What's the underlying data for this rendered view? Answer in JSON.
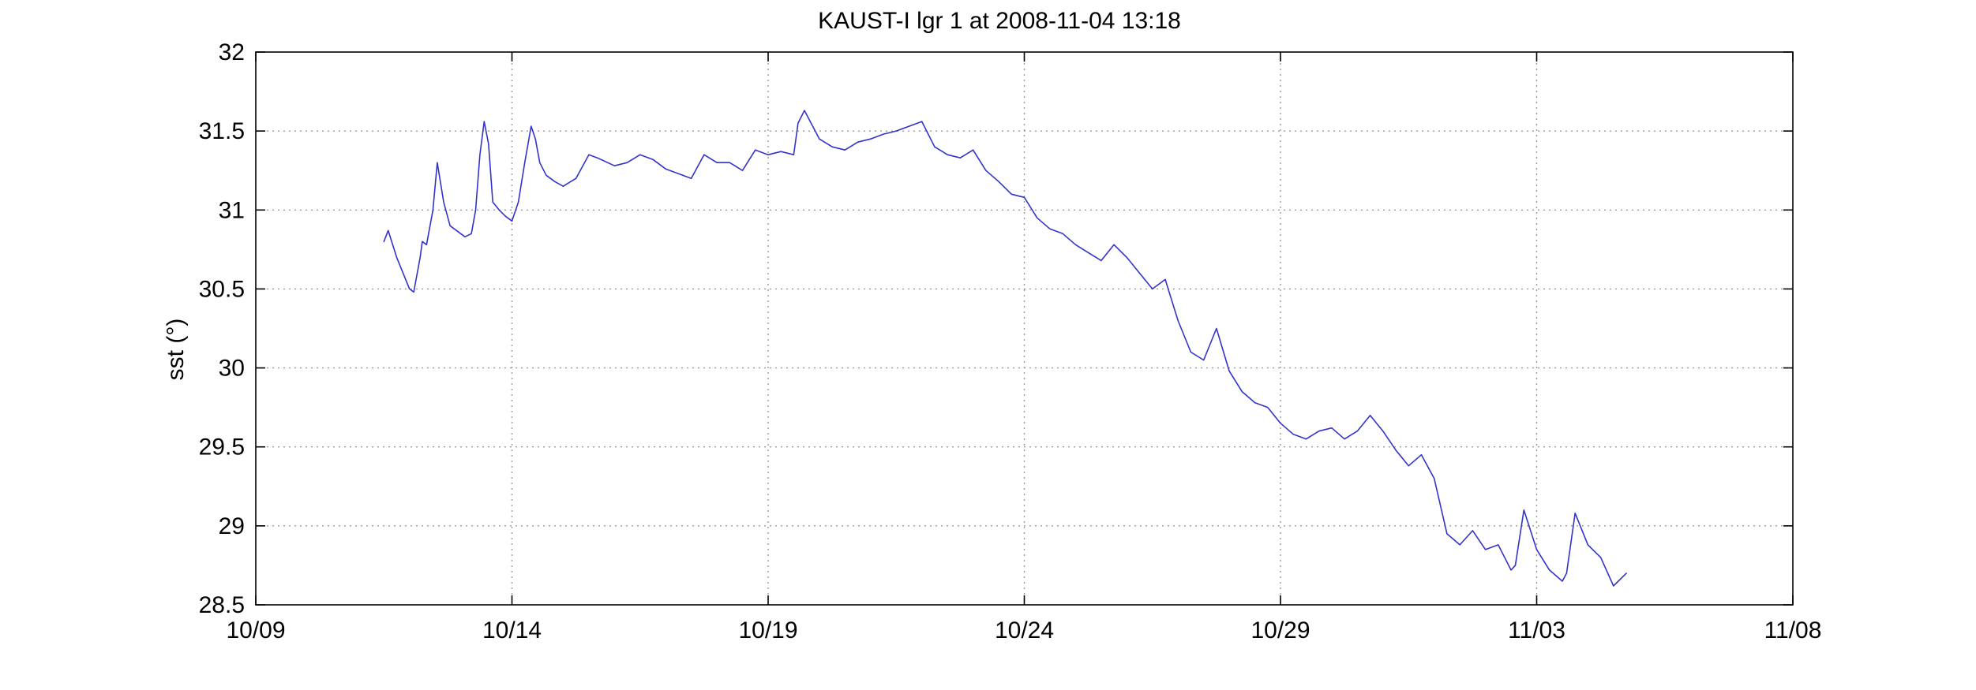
{
  "chart_data": {
    "type": "line",
    "title": "KAUST-I lgr 1 at 2008-11-04 13:18",
    "xlabel": "",
    "ylabel": "sst (°)",
    "xlim": [
      "2008-10-09",
      "2008-11-08"
    ],
    "ylim": [
      28.5,
      32
    ],
    "x_ticks": [
      "10/09",
      "10/14",
      "10/19",
      "10/24",
      "10/29",
      "11/03",
      "11/08"
    ],
    "y_ticks": [
      "28.5",
      "29",
      "29.5",
      "30",
      "30.5",
      "31",
      "31.5",
      "32"
    ],
    "grid": true,
    "series": [
      {
        "color": "#3333cc",
        "x": [
          "2008-10-11 12:00",
          "2008-10-11 14:00",
          "2008-10-11 18:00",
          "2008-10-12 00:00",
          "2008-10-12 02:00",
          "2008-10-12 05:00",
          "2008-10-12 06:00",
          "2008-10-12 08:00",
          "2008-10-12 11:00",
          "2008-10-12 13:00",
          "2008-10-12 16:00",
          "2008-10-12 19:00",
          "2008-10-12 21:00",
          "2008-10-13 00:00",
          "2008-10-13 02:00",
          "2008-10-13 05:00",
          "2008-10-13 07:00",
          "2008-10-13 09:00",
          "2008-10-13 11:00",
          "2008-10-13 13:00",
          "2008-10-13 15:00",
          "2008-10-13 18:00",
          "2008-10-13 21:00",
          "2008-10-14 00:00",
          "2008-10-14 03:00",
          "2008-10-14 06:00",
          "2008-10-14 09:00",
          "2008-10-14 11:00",
          "2008-10-14 13:00",
          "2008-10-14 16:00",
          "2008-10-14 20:00",
          "2008-10-15 00:00",
          "2008-10-15 06:00",
          "2008-10-15 12:00",
          "2008-10-15 16:00",
          "2008-10-16 00:00",
          "2008-10-16 06:00",
          "2008-10-16 12:00",
          "2008-10-16 18:00",
          "2008-10-17 00:00",
          "2008-10-17 06:00",
          "2008-10-17 12:00",
          "2008-10-17 18:00",
          "2008-10-18 00:00",
          "2008-10-18 06:00",
          "2008-10-18 12:00",
          "2008-10-18 18:00",
          "2008-10-19 00:00",
          "2008-10-19 06:00",
          "2008-10-19 12:00",
          "2008-10-19 14:00",
          "2008-10-19 17:00",
          "2008-10-20 00:00",
          "2008-10-20 06:00",
          "2008-10-20 12:00",
          "2008-10-20 18:00",
          "2008-10-21 00:00",
          "2008-10-21 06:00",
          "2008-10-21 12:00",
          "2008-10-21 18:00",
          "2008-10-22 00:00",
          "2008-10-22 06:00",
          "2008-10-22 12:00",
          "2008-10-22 18:00",
          "2008-10-23 00:00",
          "2008-10-23 06:00",
          "2008-10-23 12:00",
          "2008-10-23 18:00",
          "2008-10-24 00:00",
          "2008-10-24 06:00",
          "2008-10-24 12:00",
          "2008-10-24 18:00",
          "2008-10-25 00:00",
          "2008-10-25 06:00",
          "2008-10-25 12:00",
          "2008-10-25 18:00",
          "2008-10-26 00:00",
          "2008-10-26 06:00",
          "2008-10-26 12:00",
          "2008-10-26 18:00",
          "2008-10-27 00:00",
          "2008-10-27 06:00",
          "2008-10-27 12:00",
          "2008-10-27 18:00",
          "2008-10-28 00:00",
          "2008-10-28 06:00",
          "2008-10-28 12:00",
          "2008-10-28 18:00",
          "2008-10-29 00:00",
          "2008-10-29 06:00",
          "2008-10-29 12:00",
          "2008-10-29 18:00",
          "2008-10-30 00:00",
          "2008-10-30 06:00",
          "2008-10-30 12:00",
          "2008-10-30 18:00",
          "2008-10-31 00:00",
          "2008-10-31 06:00",
          "2008-10-31 12:00",
          "2008-10-31 18:00",
          "2008-11-01 00:00",
          "2008-11-01 06:00",
          "2008-11-01 12:00",
          "2008-11-01 18:00",
          "2008-11-02 00:00",
          "2008-11-02 06:00",
          "2008-11-02 12:00",
          "2008-11-02 14:00",
          "2008-11-02 18:00",
          "2008-11-03 00:00",
          "2008-11-03 06:00",
          "2008-11-03 12:00",
          "2008-11-03 14:00",
          "2008-11-03 18:00",
          "2008-11-04 00:00",
          "2008-11-04 06:00",
          "2008-11-04 12:00",
          "2008-11-04 18:00"
        ],
        "values": [
          30.8,
          30.87,
          30.7,
          30.5,
          30.48,
          30.7,
          30.8,
          30.78,
          31.0,
          31.3,
          31.05,
          30.9,
          30.88,
          30.85,
          30.83,
          30.85,
          31.0,
          31.35,
          31.56,
          31.42,
          31.05,
          31.0,
          30.96,
          30.93,
          31.05,
          31.3,
          31.53,
          31.45,
          31.3,
          31.22,
          31.18,
          31.15,
          31.2,
          31.35,
          31.33,
          31.28,
          31.3,
          31.35,
          31.32,
          31.26,
          31.23,
          31.2,
          31.35,
          31.3,
          31.3,
          31.25,
          31.38,
          31.35,
          31.37,
          31.35,
          31.55,
          31.63,
          31.45,
          31.4,
          31.38,
          31.43,
          31.45,
          31.48,
          31.5,
          31.53,
          31.56,
          31.4,
          31.35,
          31.33,
          31.38,
          31.25,
          31.18,
          31.1,
          31.08,
          30.95,
          30.88,
          30.85,
          30.78,
          30.73,
          30.68,
          30.78,
          30.7,
          30.6,
          30.5,
          30.56,
          30.3,
          30.1,
          30.05,
          30.25,
          29.98,
          29.85,
          29.78,
          29.75,
          29.65,
          29.58,
          29.55,
          29.6,
          29.62,
          29.55,
          29.6,
          29.7,
          29.6,
          29.48,
          29.38,
          29.45,
          29.3,
          28.95,
          28.88,
          28.97,
          28.85,
          28.88,
          28.72,
          28.75,
          29.1,
          28.85,
          28.72,
          28.65,
          28.7,
          29.08,
          28.88,
          28.8,
          28.62,
          28.7
        ]
      }
    ]
  }
}
